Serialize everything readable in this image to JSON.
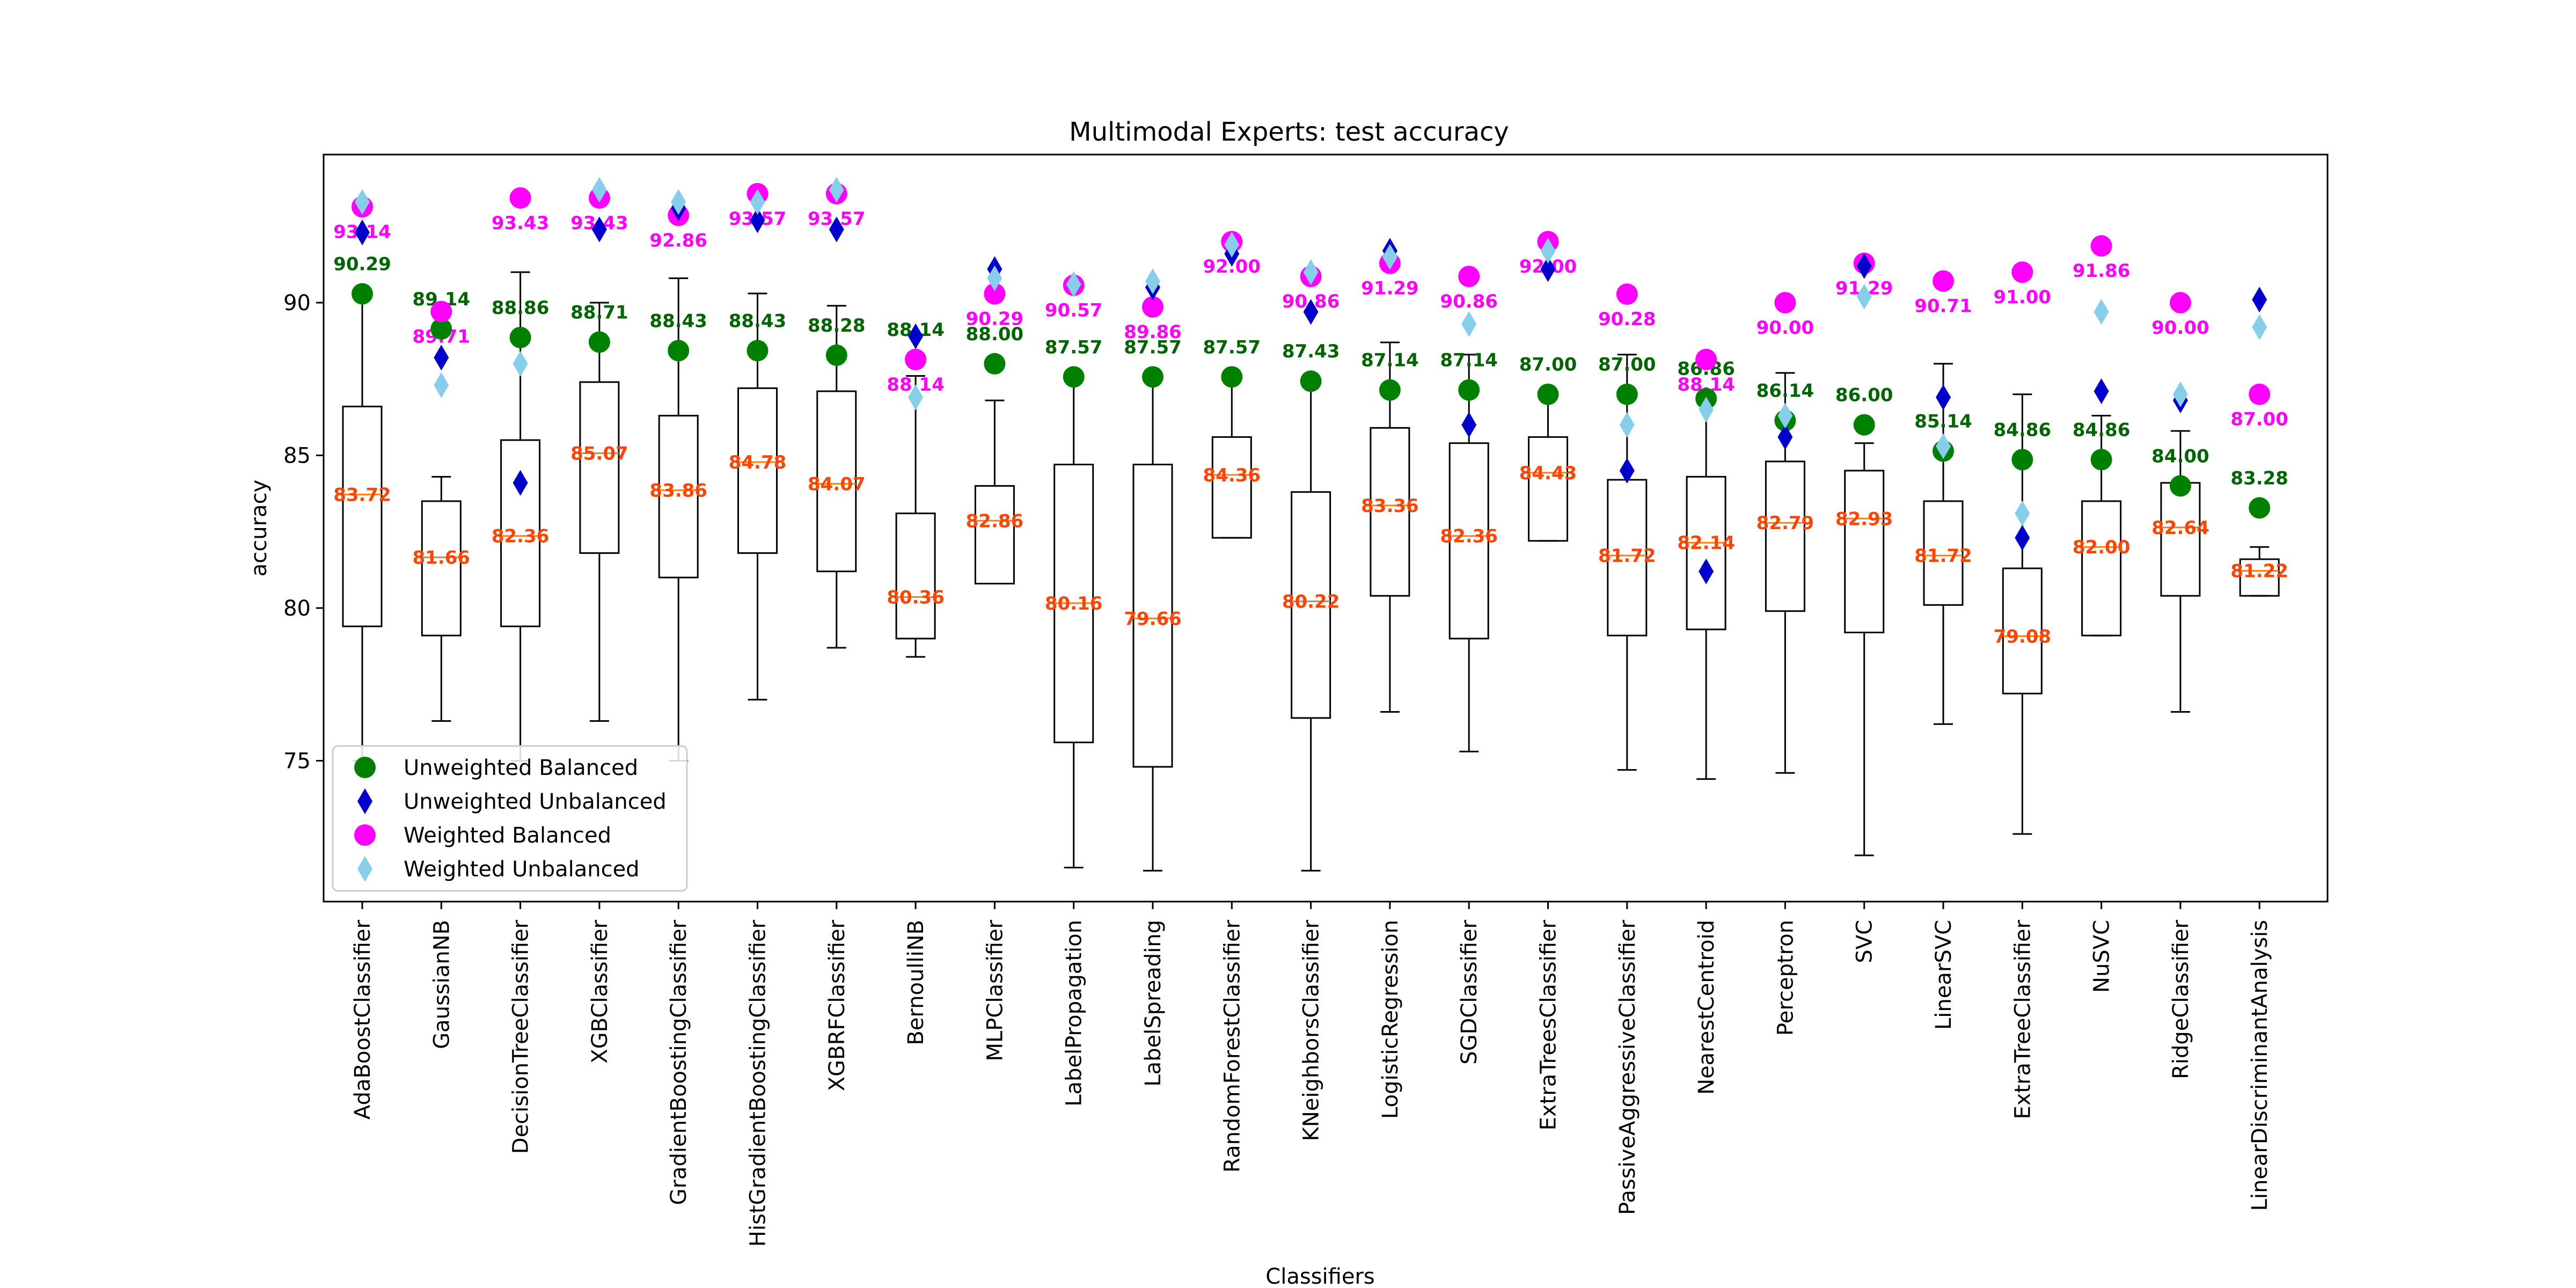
{
  "chart_data": {
    "type": "box",
    "title": "Multimodal Experts: test accuracy",
    "xlabel": "Classifiers",
    "ylabel": "accuracy",
    "ylim": [
      70,
      95
    ],
    "yticks": [
      75,
      80,
      85,
      90
    ],
    "grid": false,
    "legend_position": "lower-left",
    "categories": [
      "AdaBoostClassifier",
      "GaussianNB",
      "DecisionTreeClassifier",
      "XGBClassifier",
      "GradientBoostingClassifier",
      "HistGradientBoostingClassifier",
      "XGBRFClassifier",
      "BernoulliNB",
      "MLPClassifier",
      "LabelPropagation",
      "LabelSpreading",
      "RandomForestClassifier",
      "KNeighborsClassifier",
      "LogisticRegression",
      "SGDClassifier",
      "ExtraTreesClassifier",
      "PassiveAggressiveClassifier",
      "NearestCentroid",
      "Perceptron",
      "SVC",
      "LinearSVC",
      "ExtraTreeClassifier",
      "NuSVC",
      "RidgeClassifier",
      "LinearDiscriminantAnalysis"
    ],
    "boxes": [
      {
        "whislo": 75.0,
        "q1": 79.4,
        "med": 83.72,
        "q3": 86.6,
        "whishi": 90.3,
        "med_label": "83.72"
      },
      {
        "whislo": 76.3,
        "q1": 79.1,
        "med": 81.66,
        "q3": 83.5,
        "whishi": 84.3,
        "med_label": "81.66"
      },
      {
        "whislo": 75.0,
        "q1": 79.4,
        "med": 82.36,
        "q3": 85.5,
        "whishi": 91.0,
        "med_label": "82.36"
      },
      {
        "whislo": 76.3,
        "q1": 81.8,
        "med": 85.07,
        "q3": 87.4,
        "whishi": 90.0,
        "med_label": "85.07"
      },
      {
        "whislo": 75.0,
        "q1": 81.0,
        "med": 83.86,
        "q3": 86.3,
        "whishi": 90.8,
        "med_label": "83.86"
      },
      {
        "whislo": 77.0,
        "q1": 81.8,
        "med": 84.78,
        "q3": 87.2,
        "whishi": 90.3,
        "med_label": "84.78"
      },
      {
        "whislo": 78.7,
        "q1": 81.2,
        "med": 84.07,
        "q3": 87.1,
        "whishi": 89.9,
        "med_label": "84.07"
      },
      {
        "whislo": 78.4,
        "q1": 79.0,
        "med": 80.36,
        "q3": 83.1,
        "whishi": 87.6,
        "med_label": "80.36"
      },
      {
        "whislo": 80.8,
        "q1": 80.8,
        "med": 82.86,
        "q3": 84.0,
        "whishi": 86.8,
        "med_label": "82.86"
      },
      {
        "whislo": 71.5,
        "q1": 75.6,
        "med": 80.16,
        "q3": 84.7,
        "whishi": 87.6,
        "med_label": "80.16"
      },
      {
        "whislo": 71.4,
        "q1": 74.8,
        "med": 79.66,
        "q3": 84.7,
        "whishi": 87.6,
        "med_label": "79.66"
      },
      {
        "whislo": 82.3,
        "q1": 82.3,
        "med": 84.36,
        "q3": 85.6,
        "whishi": 87.6,
        "med_label": "84.36"
      },
      {
        "whislo": 71.4,
        "q1": 76.4,
        "med": 80.22,
        "q3": 83.8,
        "whishi": 87.4,
        "med_label": "80.22"
      },
      {
        "whislo": 76.6,
        "q1": 80.4,
        "med": 83.36,
        "q3": 85.9,
        "whishi": 88.7,
        "med_label": "83.36"
      },
      {
        "whislo": 75.3,
        "q1": 79.0,
        "med": 82.36,
        "q3": 85.4,
        "whishi": 88.3,
        "med_label": "82.36"
      },
      {
        "whislo": 82.2,
        "q1": 82.2,
        "med": 84.43,
        "q3": 85.6,
        "whishi": 87.0,
        "med_label": "84.43"
      },
      {
        "whislo": 74.7,
        "q1": 79.1,
        "med": 81.72,
        "q3": 84.2,
        "whishi": 88.3,
        "med_label": "81.72"
      },
      {
        "whislo": 74.4,
        "q1": 79.3,
        "med": 82.14,
        "q3": 84.3,
        "whishi": 87.0,
        "med_label": "82.14"
      },
      {
        "whislo": 74.6,
        "q1": 79.9,
        "med": 82.79,
        "q3": 84.8,
        "whishi": 87.7,
        "med_label": "82.79"
      },
      {
        "whislo": 71.9,
        "q1": 79.2,
        "med": 82.93,
        "q3": 84.5,
        "whishi": 85.4,
        "med_label": "82.93"
      },
      {
        "whislo": 76.2,
        "q1": 80.1,
        "med": 81.72,
        "q3": 83.5,
        "whishi": 88.0,
        "med_label": "81.72"
      },
      {
        "whislo": 72.6,
        "q1": 77.2,
        "med": 79.08,
        "q3": 81.3,
        "whishi": 87.0,
        "med_label": "79.08"
      },
      {
        "whislo": 79.1,
        "q1": 79.1,
        "med": 82.0,
        "q3": 83.5,
        "whishi": 86.3,
        "med_label": "82.00"
      },
      {
        "whislo": 76.6,
        "q1": 80.4,
        "med": 82.64,
        "q3": 84.1,
        "whishi": 85.8,
        "med_label": "82.64"
      },
      {
        "whislo": 80.4,
        "q1": 80.4,
        "med": 81.22,
        "q3": 81.6,
        "whishi": 82.0,
        "med_label": "81.22"
      }
    ],
    "series": [
      {
        "name": "Unweighted Balanced",
        "marker": "circle",
        "color": "#008000",
        "label_color": "#006400",
        "values": [
          90.29,
          89.14,
          88.86,
          88.71,
          88.43,
          88.43,
          88.28,
          88.14,
          88.0,
          87.57,
          87.57,
          87.57,
          87.43,
          87.14,
          87.14,
          87.0,
          87.0,
          86.86,
          86.14,
          86.0,
          85.14,
          84.86,
          84.86,
          84.0,
          83.28
        ],
        "labels": [
          "90.29",
          "89.14",
          "88.86",
          "88.71",
          "88.43",
          "88.43",
          "88.28",
          "88.14",
          "88.00",
          "87.57",
          "87.57",
          "87.57",
          "87.43",
          "87.14",
          "87.14",
          "87.00",
          "87.00",
          "86.86",
          "86.14",
          "86.00",
          "85.14",
          "84.86",
          "84.86",
          "84.00",
          "83.28"
        ]
      },
      {
        "name": "Unweighted Unbalanced",
        "marker": "diamond",
        "color": "#0000cd",
        "values": [
          92.3,
          88.2,
          84.1,
          92.4,
          93.1,
          92.7,
          92.4,
          88.9,
          91.1,
          90.6,
          90.5,
          91.6,
          89.7,
          91.7,
          86.0,
          91.1,
          84.5,
          81.2,
          85.6,
          91.2,
          86.9,
          82.3,
          87.1,
          86.8,
          90.1
        ]
      },
      {
        "name": "Weighted Balanced",
        "marker": "circle",
        "color": "#ff00ff",
        "label_color": "#ff00ff",
        "values": [
          93.14,
          89.71,
          93.43,
          93.43,
          92.86,
          93.57,
          93.57,
          88.14,
          90.29,
          90.57,
          89.86,
          92.0,
          90.86,
          91.29,
          90.86,
          92.0,
          90.28,
          88.14,
          90.0,
          91.29,
          90.71,
          91.0,
          91.86,
          90.0,
          87.0
        ],
        "labels": [
          "93.14",
          "89.71",
          "93.43",
          "93.43",
          "92.86",
          "93.57",
          "93.57",
          "88.14",
          "90.29",
          "90.57",
          "89.86",
          "92.00",
          "90.86",
          "91.29",
          "90.86",
          "92.00",
          "90.28",
          "88.14",
          "90.00",
          "91.29",
          "90.71",
          "91.00",
          "91.86",
          "90.00",
          "87.00"
        ]
      },
      {
        "name": "Weighted Unbalanced",
        "marker": "diamond",
        "color": "#87ceeb",
        "values": [
          93.3,
          87.3,
          88.0,
          93.7,
          93.3,
          93.3,
          93.7,
          86.9,
          90.8,
          90.6,
          90.7,
          91.9,
          91.0,
          91.5,
          89.3,
          91.7,
          86.0,
          86.5,
          86.3,
          90.2,
          85.3,
          83.1,
          89.7,
          87.0,
          89.2
        ]
      }
    ],
    "median_label_color": "#ff4500"
  }
}
